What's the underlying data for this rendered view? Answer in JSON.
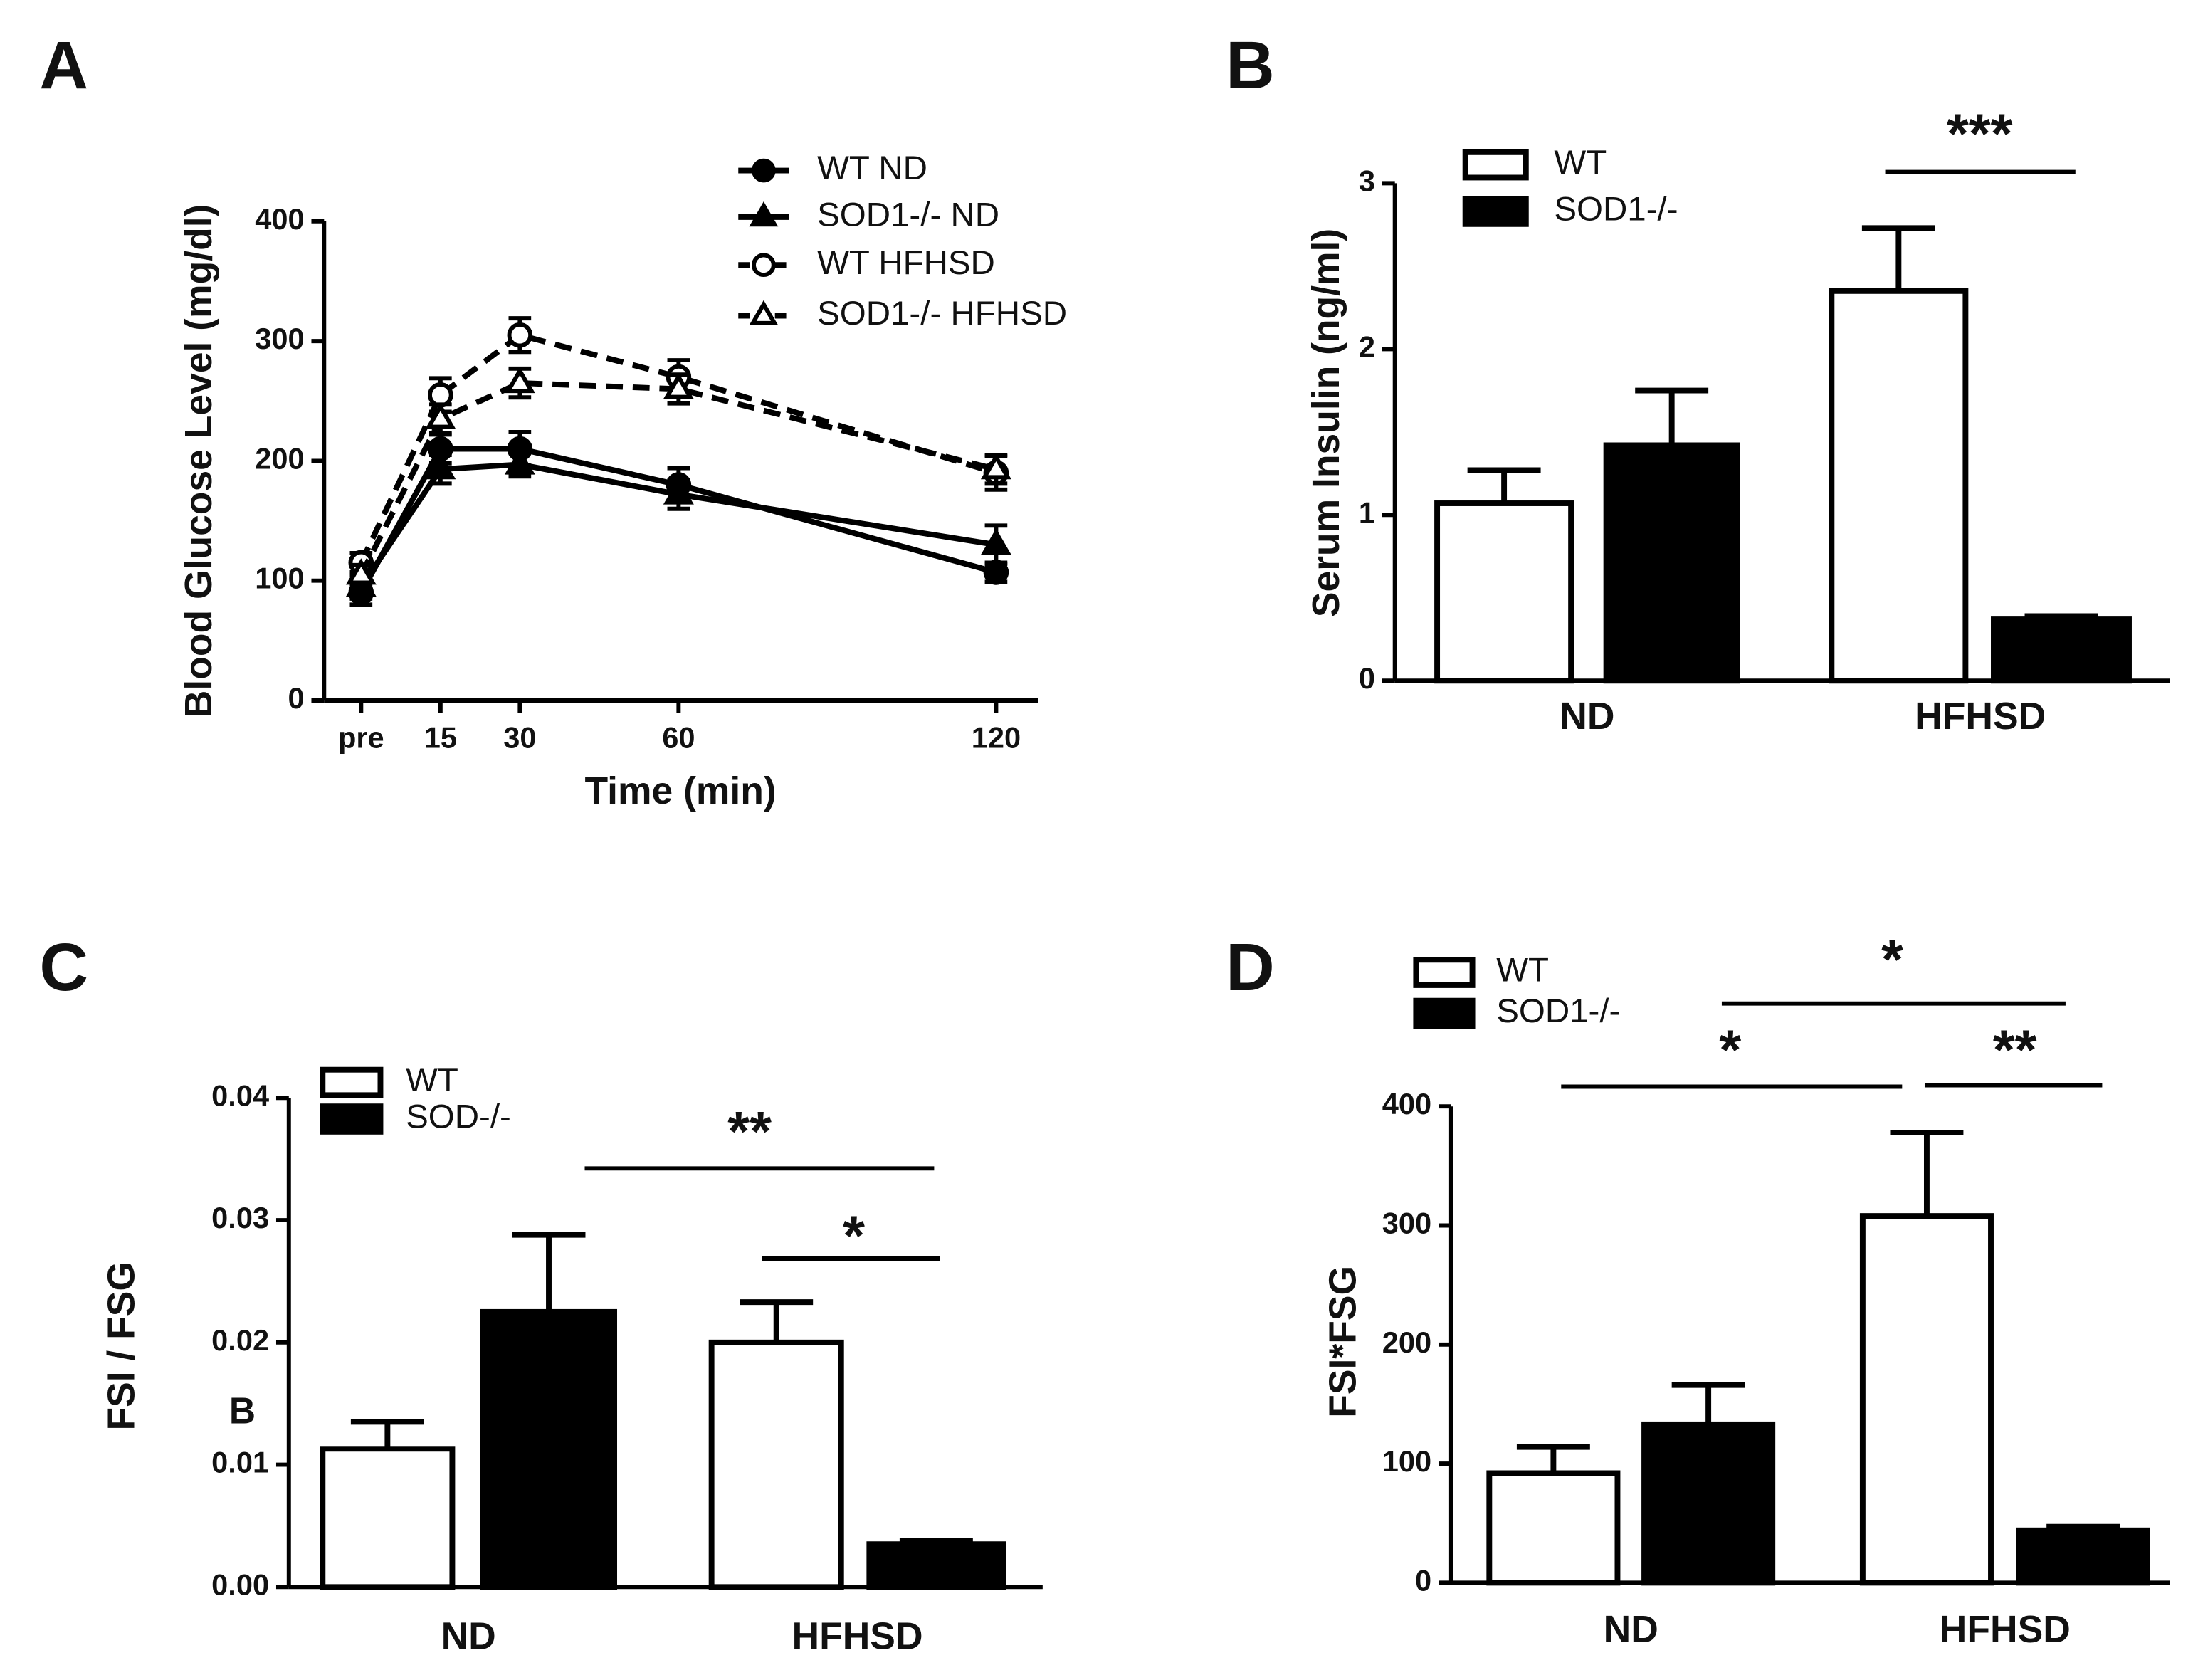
{
  "chart_data": [
    {
      "type": "line",
      "title": "A",
      "x_label": "Time (min)",
      "y_label": "Blood Glucose Level (mg/dl)",
      "x": [
        0,
        15,
        30,
        60,
        120
      ],
      "xlim": [
        -7,
        128
      ],
      "xticks": [
        {
          "value": 0,
          "label": "pre"
        },
        15,
        30,
        60,
        120
      ],
      "ylim": [
        0,
        400
      ],
      "yticks": [
        0,
        100,
        200,
        300,
        400
      ],
      "series": [
        {
          "name": "WT ND",
          "color": "#000000",
          "marker": "circle",
          "filled": true,
          "line_style": "solid",
          "values": [
            90,
            210,
            210,
            180,
            107
          ],
          "errors": [
            10,
            12,
            14,
            14,
            8
          ]
        },
        {
          "name": "SOD1-/- ND",
          "color": "#000000",
          "marker": "triangle",
          "filled": true,
          "line_style": "solid",
          "values": [
            95,
            193,
            197,
            172,
            130
          ],
          "errors": [
            10,
            12,
            10,
            12,
            16
          ]
        },
        {
          "name": "WT HFHSD",
          "color": "#000000",
          "marker": "circle",
          "filled": false,
          "line_style": "dashed",
          "values": [
            115,
            255,
            305,
            270,
            190
          ],
          "errors": [
            8,
            14,
            14,
            14,
            14
          ]
        },
        {
          "name": "SOD1-/- HFHSD",
          "color": "#000000",
          "marker": "triangle",
          "filled": false,
          "line_style": "dashed",
          "values": [
            105,
            235,
            265,
            260,
            193
          ],
          "errors": [
            8,
            12,
            12,
            12,
            12
          ]
        }
      ]
    },
    {
      "type": "bar",
      "title": "B",
      "y_label": "Serum Insulin (ng/ml)",
      "categories": [
        "ND",
        "HFHSD"
      ],
      "ylim": [
        0,
        3
      ],
      "yticks": [
        0,
        1,
        2,
        3
      ],
      "series": [
        {
          "name": "WT",
          "color": "#ffffff",
          "values": [
            1.07,
            2.35
          ],
          "errors": [
            0.2,
            0.38
          ]
        },
        {
          "name": "SOD1-/-",
          "color": "#000000",
          "values": [
            1.42,
            0.37
          ],
          "errors": [
            0.33,
            0.02
          ]
        }
      ],
      "annotations": [
        "***"
      ]
    },
    {
      "type": "bar",
      "title": "C",
      "y_label": "FSI / FSG",
      "categories": [
        "ND",
        "HFHSD"
      ],
      "ylim": [
        0,
        0.04
      ],
      "yticks": [
        {
          "value": 0,
          "label": "0.00"
        },
        0.01,
        0.02,
        0.03,
        0.04
      ],
      "series": [
        {
          "name": "WT",
          "color": "#ffffff",
          "values": [
            0.0113,
            0.02
          ],
          "errors": [
            0.0022,
            0.0033
          ]
        },
        {
          "name": "SOD-/-",
          "color": "#000000",
          "values": [
            0.0225,
            0.0035
          ],
          "errors": [
            0.0063,
            0.0003
          ]
        }
      ],
      "annotations": [
        "**",
        "*",
        "B"
      ]
    },
    {
      "type": "bar",
      "title": "D",
      "y_label": "FSI*FSG",
      "categories": [
        "ND",
        "HFHSD"
      ],
      "ylim": [
        0,
        400
      ],
      "yticks": [
        0,
        100,
        200,
        300,
        400
      ],
      "series": [
        {
          "name": "WT",
          "color": "#ffffff",
          "values": [
            92,
            308
          ],
          "errors": [
            22,
            70
          ]
        },
        {
          "name": "SOD1-/-",
          "color": "#000000",
          "values": [
            133,
            44
          ],
          "errors": [
            33,
            3
          ]
        }
      ],
      "annotations": [
        "*",
        "*",
        "**"
      ]
    }
  ]
}
